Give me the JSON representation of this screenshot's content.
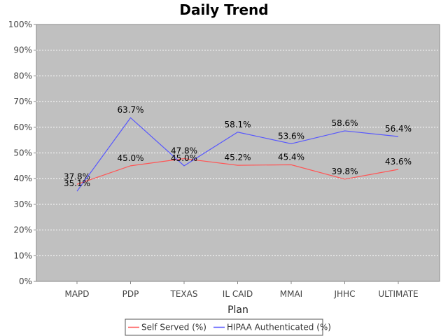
{
  "chart_data": {
    "type": "line",
    "title": "Daily Trend",
    "xlabel": "Plan",
    "ylabel": "",
    "ylim": [
      0,
      100
    ],
    "y_ticks": [
      "0%",
      "10%",
      "20%",
      "30%",
      "40%",
      "50%",
      "60%",
      "70%",
      "80%",
      "90%",
      "100%"
    ],
    "categories": [
      "MAPD",
      "PDP",
      "TEXAS",
      "IL CAID",
      "MMAI",
      "JHHC",
      "ULTIMATE"
    ],
    "series": [
      {
        "name": "Self Served (%)",
        "color": "#ff5555",
        "values": [
          37.8,
          45.0,
          47.8,
          45.2,
          45.4,
          39.8,
          43.6
        ],
        "labels": [
          "37.8%",
          "45.0%",
          "47.8%",
          "45.2%",
          "45.4%",
          "39.8%",
          "43.6%"
        ]
      },
      {
        "name": "HIPAA Authenticated (%)",
        "color": "#5555ff",
        "values": [
          35.1,
          63.7,
          45.0,
          58.1,
          53.6,
          58.6,
          56.4
        ],
        "labels": [
          "35.1%",
          "63.7%",
          "45.0%",
          "58.1%",
          "53.6%",
          "58.6%",
          "56.4%"
        ]
      }
    ],
    "grid": true,
    "legend_position": "bottom-center",
    "plot_background": "#c0c0c0"
  }
}
